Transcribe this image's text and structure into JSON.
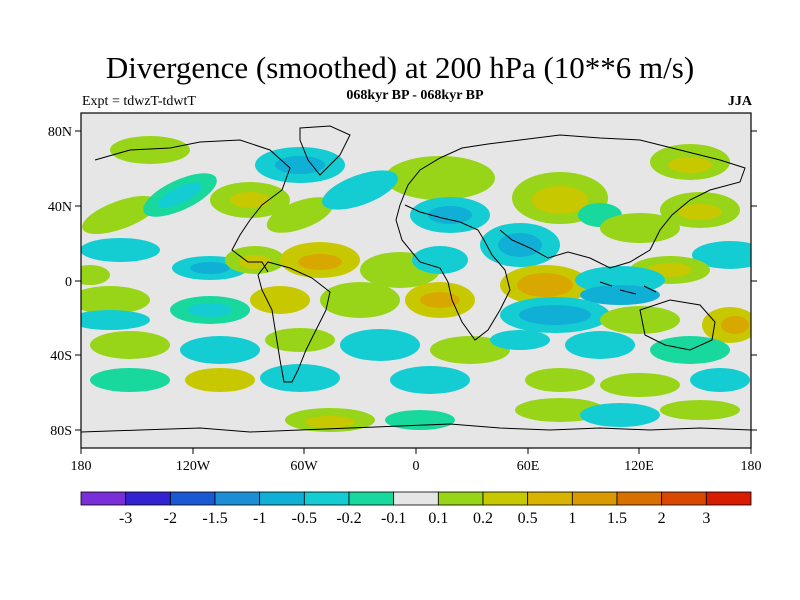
{
  "title": "Divergence (smoothed) at 200 hPa (10**6 m/s)",
  "subtitle": "068kyr BP - 068kyr BP",
  "left_label": "Expt = tdwzT-tdwtT",
  "right_label": "JJA",
  "axes": {
    "lat_labels": [
      "80N",
      "40N",
      "0",
      "40S",
      "80S"
    ],
    "lon_labels": [
      "180",
      "120W",
      "60W",
      "0",
      "60E",
      "120E",
      "180"
    ]
  },
  "colorbar": {
    "colors": [
      "#7a2ed8",
      "#3322d2",
      "#1b58d4",
      "#1c8fd4",
      "#10b0d6",
      "#14cdd2",
      "#18d89e",
      "#e6e6e6",
      "#98d418",
      "#c8c800",
      "#d8b400",
      "#d89a00",
      "#d87000",
      "#d84800",
      "#d81c00"
    ],
    "labels": [
      "-3",
      "-2",
      "-1.5",
      "-1",
      "-0.5",
      "-0.2",
      "-0.1",
      "0.1",
      "0.2",
      "0.5",
      "1",
      "1.5",
      "2",
      "3"
    ]
  },
  "colors": {
    "background": "#e6e6e6",
    "positive_weak": "#98d418",
    "positive_mid": "#c8c800",
    "positive_strong": "#d8a800",
    "negative_weak": "#18d89e",
    "negative_mid": "#14cdd2",
    "negative_strong": "#10b0d6",
    "coast": "#000000"
  }
}
